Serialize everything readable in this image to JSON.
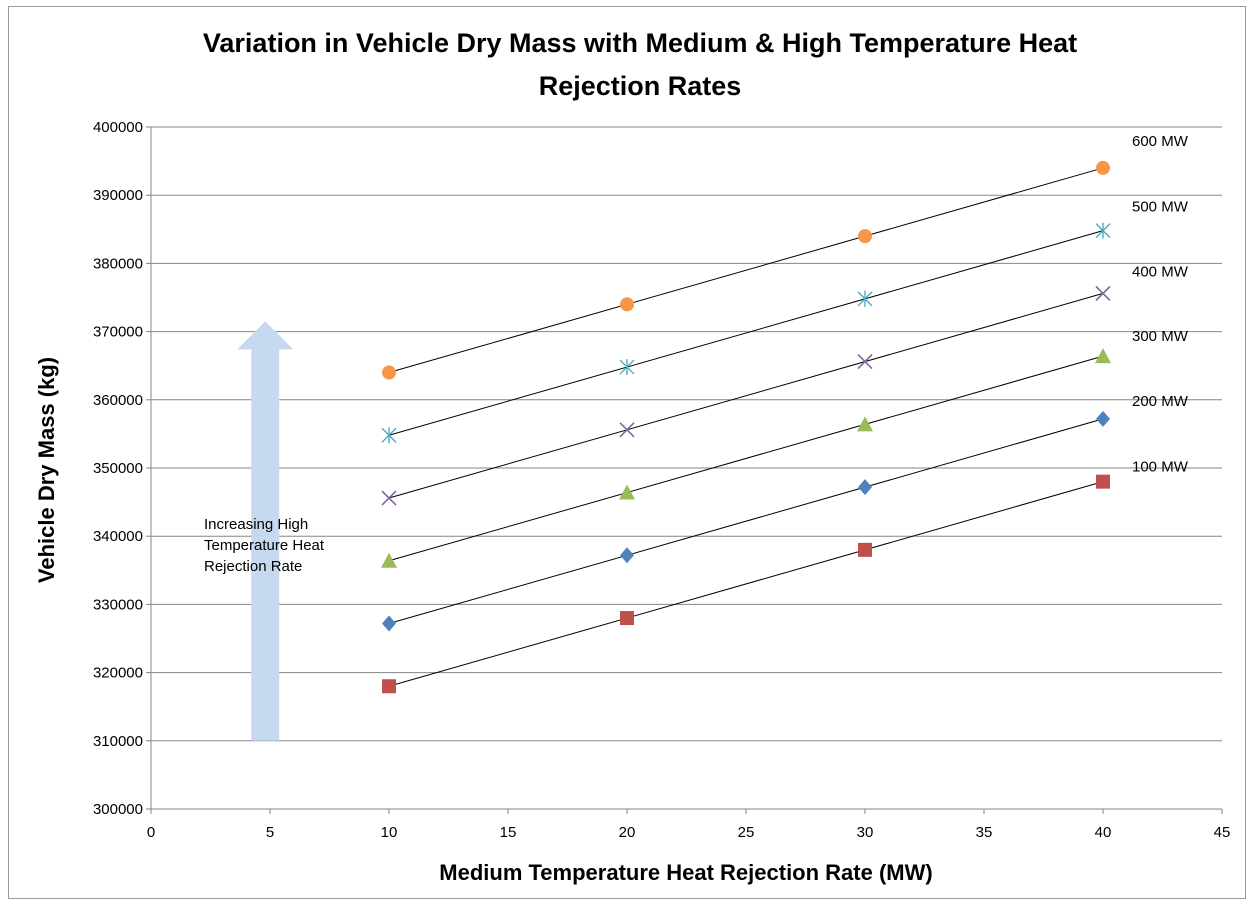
{
  "chart_data": {
    "type": "scatter",
    "title_lines": [
      "Variation in Vehicle Dry Mass with Medium & High Temperature Heat",
      "Rejection Rates"
    ],
    "xlabel": "Medium Temperature Heat Rejection Rate (MW)",
    "ylabel": "Vehicle Dry Mass (kg)",
    "xlim": [
      0,
      45
    ],
    "ylim": [
      300000,
      400000
    ],
    "x_ticks": [
      0,
      5,
      10,
      15,
      20,
      25,
      30,
      35,
      40,
      45
    ],
    "y_ticks": [
      300000,
      310000,
      320000,
      330000,
      340000,
      350000,
      360000,
      370000,
      380000,
      390000,
      400000
    ],
    "x_tick_labels": [
      "0",
      "5",
      "10",
      "15",
      "20",
      "25",
      "30",
      "35",
      "40",
      "45"
    ],
    "y_tick_labels": [
      "300000",
      "310000",
      "320000",
      "330000",
      "340000",
      "350000",
      "360000",
      "370000",
      "380000",
      "390000",
      "400000"
    ],
    "grid": "horizontal",
    "legend": "none",
    "trendlines": "linear, black",
    "x": [
      10,
      20,
      30,
      40
    ],
    "series": [
      {
        "label": "100 MW",
        "marker": "square",
        "color": "#c0504d",
        "values": [
          318000,
          328000,
          338000,
          348000
        ]
      },
      {
        "label": "200 MW",
        "marker": "diamond",
        "color": "#4f81bd",
        "values": [
          327200,
          337200,
          347200,
          357200
        ]
      },
      {
        "label": "300 MW",
        "marker": "triangle",
        "color": "#9bbb59",
        "values": [
          336400,
          346400,
          356400,
          366400
        ]
      },
      {
        "label": "400 MW",
        "marker": "x",
        "color": "#8064a2",
        "values": [
          345600,
          355600,
          365600,
          375600
        ]
      },
      {
        "label": "500 MW",
        "marker": "star",
        "color": "#4bacc6",
        "values": [
          354800,
          364800,
          374800,
          384800
        ]
      },
      {
        "label": "600 MW",
        "marker": "circle",
        "color": "#f79646",
        "values": [
          364000,
          374000,
          384000,
          394000
        ]
      }
    ],
    "annotation": {
      "lines": [
        "Increasing High",
        "Temperature Heat",
        "Rejection Rate"
      ],
      "arrow_color": "#c6d9f1",
      "arrow_x": 4.8,
      "arrow_y": [
        310000,
        371500
      ]
    }
  }
}
